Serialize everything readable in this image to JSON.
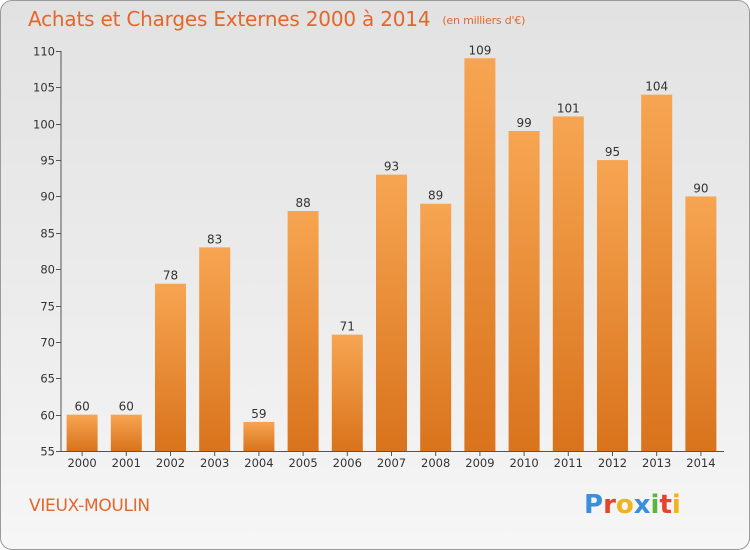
{
  "header": {
    "title": "Achats et Charges Externes 2000 à 2014",
    "subtitle": "(en milliers d'€)"
  },
  "location": "VIEUX-MOULIN",
  "logo": {
    "text": "Proxiti",
    "letters": [
      {
        "ch": "P",
        "color": "#3b8fd8"
      },
      {
        "ch": "r",
        "color": "#e8432a"
      },
      {
        "ch": "o",
        "color": "#f2b21c"
      },
      {
        "ch": "x",
        "color": "#3b8fd8"
      },
      {
        "ch": "i",
        "color": "#5ab53a"
      },
      {
        "ch": "t",
        "color": "#e8432a"
      },
      {
        "ch": "i",
        "color": "#f2b21c"
      }
    ]
  },
  "colors": {
    "accent": "#e4662a",
    "bar_top": "#f7a552",
    "bar_bottom": "#d9731c"
  },
  "chart_data": {
    "type": "bar",
    "title": "Achats et Charges Externes 2000 à 2014",
    "subtitle": "(en milliers d'€)",
    "xlabel": "",
    "ylabel": "",
    "categories": [
      "2000",
      "2001",
      "2002",
      "2003",
      "2004",
      "2005",
      "2006",
      "2007",
      "2008",
      "2009",
      "2010",
      "2011",
      "2012",
      "2013",
      "2014"
    ],
    "values": [
      60,
      60,
      78,
      83,
      59,
      88,
      71,
      93,
      89,
      109,
      99,
      101,
      95,
      104,
      90
    ],
    "ylim": [
      55,
      110
    ],
    "yticks": [
      55,
      60,
      65,
      70,
      75,
      80,
      85,
      90,
      95,
      100,
      105,
      110
    ],
    "grid": false,
    "data_labels": true
  }
}
